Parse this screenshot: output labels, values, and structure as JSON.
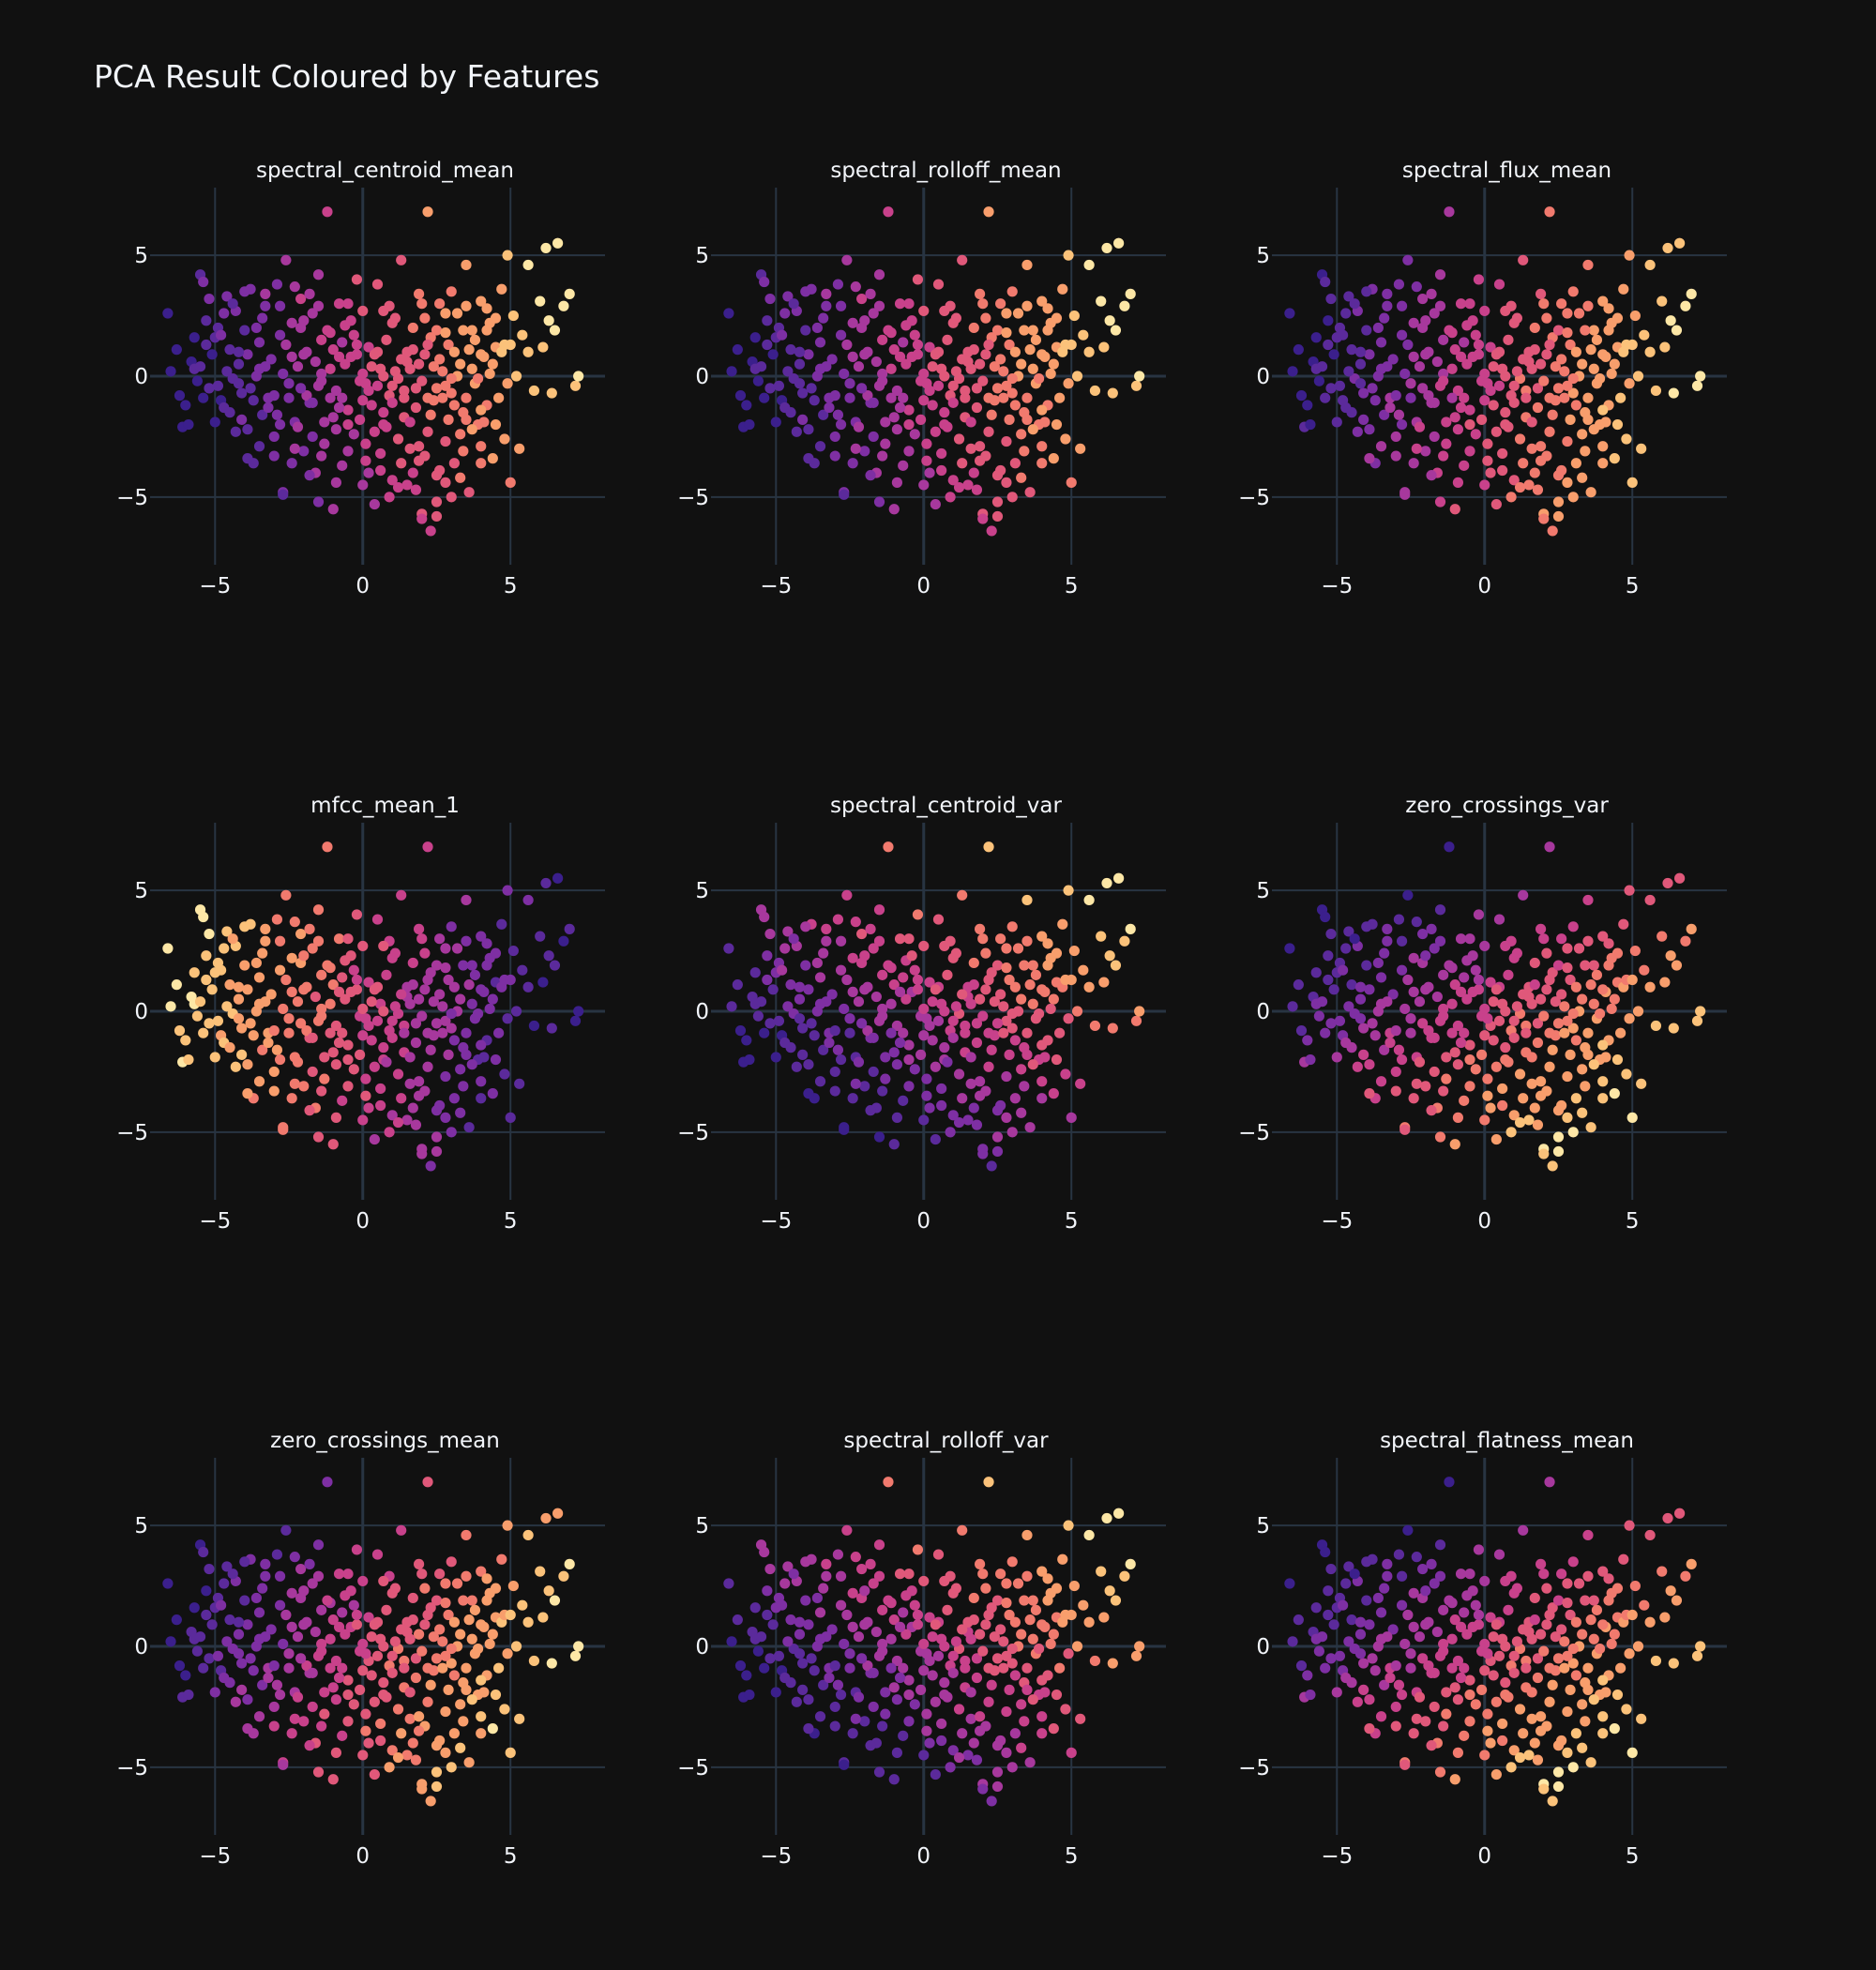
{
  "title": "PCA Result Coloured by Features",
  "colors": {
    "background": "#111111",
    "grid": "#283442",
    "zeroline": "#283442",
    "text": "#f2f5fa",
    "colorscale": [
      "#0d0887",
      "#46039f",
      "#7201a8",
      "#9c179e",
      "#bd3786",
      "#d8576b",
      "#ed7953",
      "#fb9f3a",
      "#fdca26",
      "#f0f921"
    ],
    "plasma_like": [
      "#3b1f8c",
      "#5b2a9b",
      "#7e2fa3",
      "#a7389d",
      "#c8418b",
      "#e0587a",
      "#f17a6e",
      "#f89e6c",
      "#fbc27a",
      "#fde7a6"
    ]
  },
  "chart_data": {
    "type": "scatter",
    "layout": "3x3 grid",
    "xticks": [
      -5,
      0,
      5
    ],
    "yticks": [
      -5,
      0,
      5
    ],
    "xlim": [
      -7.2,
      8.2
    ],
    "ylim": [
      -7.8,
      7.8
    ],
    "grid": true,
    "legend": "none",
    "subplots": [
      {
        "title": "spectral_centroid_mean",
        "color_by": "x_plus_y",
        "trend": [
          0.45,
          0.1
        ]
      },
      {
        "title": "spectral_rolloff_mean",
        "color_by": "x_plus_y",
        "trend": [
          0.45,
          0.1
        ]
      },
      {
        "title": "spectral_flux_mean",
        "color_by": "x_plus_y",
        "trend": [
          0.3,
          -0.05
        ]
      },
      {
        "title": "mfcc_mean_1",
        "color_by": "neg_x",
        "trend": [
          -0.45,
          0.05
        ]
      },
      {
        "title": "spectral_centroid_var",
        "color_by": "x_plus_y",
        "trend": [
          0.25,
          0.25
        ]
      },
      {
        "title": "zero_crossings_var",
        "color_by": "x_minus_y",
        "trend": [
          0.25,
          -0.25
        ]
      },
      {
        "title": "zero_crossings_mean",
        "color_by": "x_plus_y",
        "trend": [
          0.3,
          -0.1
        ]
      },
      {
        "title": "spectral_rolloff_var",
        "color_by": "x_plus_y",
        "trend": [
          0.3,
          0.25
        ]
      },
      {
        "title": "spectral_flatness_mean",
        "color_by": "x_minus_y",
        "trend": [
          0.2,
          -0.2
        ]
      }
    ],
    "points": [
      [
        -6.6,
        2.6
      ],
      [
        -6.5,
        0.2
      ],
      [
        -6.1,
        -2.1
      ],
      [
        -5.9,
        -2.0
      ],
      [
        -5.8,
        0.6
      ],
      [
        -5.7,
        0.3
      ],
      [
        -5.6,
        -0.2
      ],
      [
        -5.5,
        4.2
      ],
      [
        -5.4,
        3.9
      ],
      [
        -5.3,
        2.3
      ],
      [
        -5.2,
        -0.5
      ],
      [
        -5.1,
        0.9
      ],
      [
        -5.0,
        1.6
      ],
      [
        -4.9,
        2.0
      ],
      [
        -4.8,
        -1.0
      ],
      [
        -4.7,
        -1.3
      ],
      [
        -4.6,
        3.3
      ],
      [
        -4.5,
        1.1
      ],
      [
        -4.4,
        -0.1
      ],
      [
        -4.3,
        2.7
      ],
      [
        -4.2,
        0.5
      ],
      [
        -4.1,
        -0.7
      ],
      [
        -4.0,
        1.9
      ],
      [
        -3.9,
        -2.2
      ],
      [
        -3.8,
        3.6
      ],
      [
        -3.7,
        -3.6
      ],
      [
        -3.6,
        0.0
      ],
      [
        -3.5,
        1.4
      ],
      [
        -3.4,
        -1.6
      ],
      [
        -3.3,
        2.9
      ],
      [
        -3.2,
        -0.9
      ],
      [
        -3.1,
        0.7
      ],
      [
        -3.0,
        -2.5
      ],
      [
        -2.9,
        3.8
      ],
      [
        -2.8,
        1.7
      ],
      [
        -2.7,
        -4.8
      ],
      [
        -2.6,
        4.8
      ],
      [
        -2.5,
        -0.3
      ],
      [
        -2.4,
        2.2
      ],
      [
        -2.3,
        -1.9
      ],
      [
        -2.2,
        0.4
      ],
      [
        -2.1,
        3.2
      ],
      [
        -2.0,
        -3.1
      ],
      [
        -1.9,
        1.0
      ],
      [
        -1.8,
        -1.1
      ],
      [
        -1.7,
        2.6
      ],
      [
        -1.6,
        -4.0
      ],
      [
        -1.5,
        4.2
      ],
      [
        -1.4,
        0.1
      ],
      [
        -1.3,
        -2.8
      ],
      [
        -1.2,
        6.8
      ],
      [
        -1.1,
        1.8
      ],
      [
        -1.0,
        -5.5
      ],
      [
        -0.9,
        -0.6
      ],
      [
        -0.8,
        3.0
      ],
      [
        -0.7,
        -3.7
      ],
      [
        -0.6,
        2.1
      ],
      [
        -0.5,
        -1.4
      ],
      [
        -0.4,
        0.8
      ],
      [
        -0.3,
        -2.4
      ],
      [
        -0.2,
        4.0
      ],
      [
        -0.1,
        -0.2
      ],
      [
        0.0,
        2.7
      ],
      [
        0.1,
        -3.5
      ],
      [
        0.2,
        1.2
      ],
      [
        0.3,
        -1.2
      ],
      [
        0.4,
        -5.3
      ],
      [
        0.5,
        3.8
      ],
      [
        0.6,
        0.3
      ],
      [
        0.7,
        -2.0
      ],
      [
        0.8,
        1.5
      ],
      [
        0.9,
        -0.8
      ],
      [
        1.0,
        -4.3
      ],
      [
        1.1,
        2.4
      ],
      [
        1.2,
        -0.1
      ],
      [
        1.3,
        4.8
      ],
      [
        1.4,
        -1.7
      ],
      [
        1.5,
        0.6
      ],
      [
        1.6,
        -3.0
      ],
      [
        1.7,
        2.0
      ],
      [
        1.8,
        -0.5
      ],
      [
        1.9,
        3.4
      ],
      [
        2.0,
        -5.7
      ],
      [
        2.1,
        0.9
      ],
      [
        2.2,
        -2.3
      ],
      [
        2.2,
        6.8
      ],
      [
        2.3,
        1.6
      ],
      [
        2.4,
        -1.0
      ],
      [
        2.5,
        -4.1
      ],
      [
        2.6,
        3.0
      ],
      [
        2.7,
        0.2
      ],
      [
        2.8,
        -2.7
      ],
      [
        2.9,
        1.3
      ],
      [
        3.0,
        -0.7
      ],
      [
        3.1,
        -3.6
      ],
      [
        3.2,
        2.6
      ],
      [
        3.3,
        0.5
      ],
      [
        3.4,
        -1.5
      ],
      [
        3.5,
        4.6
      ],
      [
        3.6,
        -4.8
      ],
      [
        3.7,
        1.9
      ],
      [
        3.8,
        -0.3
      ],
      [
        3.9,
        -2.0
      ],
      [
        4.0,
        3.1
      ],
      [
        4.1,
        0.8
      ],
      [
        4.2,
        -1.2
      ],
      [
        4.3,
        2.2
      ],
      [
        4.4,
        -3.4
      ],
      [
        4.5,
        1.2
      ],
      [
        4.6,
        -0.9
      ],
      [
        4.7,
        3.6
      ],
      [
        4.8,
        -2.6
      ],
      [
        4.9,
        5.0
      ],
      [
        5.0,
        -4.4
      ],
      [
        5.1,
        2.5
      ],
      [
        5.2,
        0.0
      ],
      [
        5.3,
        -3.0
      ],
      [
        5.4,
        1.7
      ],
      [
        5.6,
        4.6
      ],
      [
        5.8,
        -0.6
      ],
      [
        6.0,
        3.1
      ],
      [
        6.1,
        1.2
      ],
      [
        6.2,
        5.3
      ],
      [
        6.4,
        -0.7
      ],
      [
        6.6,
        5.5
      ],
      [
        6.8,
        2.9
      ],
      [
        7.0,
        3.4
      ],
      [
        7.2,
        -0.4
      ],
      [
        7.3,
        0.0
      ],
      [
        6.5,
        1.9
      ],
      [
        -5.7,
        1.6
      ],
      [
        -4.9,
        -0.4
      ],
      [
        -4.4,
        3.0
      ],
      [
        -3.9,
        0.9
      ],
      [
        -3.4,
        2.4
      ],
      [
        -3.0,
        -0.8
      ],
      [
        -2.6,
        1.3
      ],
      [
        -2.2,
        -2.1
      ],
      [
        -1.8,
        3.4
      ],
      [
        -1.5,
        -0.4
      ],
      [
        -1.2,
        1.9
      ],
      [
        -0.9,
        -2.2
      ],
      [
        -0.6,
        0.5
      ],
      [
        -0.3,
        1.7
      ],
      [
        0.0,
        -1.0
      ],
      [
        0.3,
        0.4
      ],
      [
        0.6,
        -3.9
      ],
      [
        0.9,
        2.9
      ],
      [
        1.2,
        -2.6
      ],
      [
        1.5,
        1.0
      ],
      [
        1.8,
        -1.3
      ],
      [
        2.1,
        2.4
      ],
      [
        2.4,
        0.4
      ],
      [
        2.7,
        -0.9
      ],
      [
        3.0,
        3.5
      ],
      [
        3.3,
        -2.4
      ],
      [
        3.6,
        1.1
      ],
      [
        3.9,
        -0.1
      ],
      [
        4.2,
        2.8
      ],
      [
        4.5,
        -2.0
      ],
      [
        -5.4,
        -0.9
      ],
      [
        -4.6,
        0.2
      ],
      [
        -4.1,
        -1.8
      ],
      [
        -3.6,
        2.0
      ],
      [
        -3.2,
        -1.3
      ],
      [
        -2.7,
        0.1
      ],
      [
        -2.3,
        3.7
      ],
      [
        -1.9,
        -0.8
      ],
      [
        -1.6,
        0.6
      ],
      [
        -1.3,
        -1.9
      ],
      [
        -1.0,
        1.1
      ],
      [
        -0.7,
        -0.9
      ],
      [
        -0.4,
        2.3
      ],
      [
        -0.1,
        -1.8
      ],
      [
        0.2,
        -0.6
      ],
      [
        0.5,
        1.0
      ],
      [
        0.8,
        -2.1
      ],
      [
        1.1,
        0.2
      ],
      [
        1.4,
        -0.6
      ],
      [
        1.7,
        1.1
      ],
      [
        2.0,
        -0.2
      ],
      [
        2.3,
        -1.6
      ],
      [
        2.6,
        0.7
      ],
      [
        2.9,
        -1.8
      ],
      [
        3.2,
        0.0
      ],
      [
        3.5,
        -0.9
      ],
      [
        3.8,
        1.5
      ],
      [
        4.1,
        -1.9
      ],
      [
        4.4,
        0.5
      ],
      [
        4.7,
        1.0
      ],
      [
        -6.2,
        -0.8
      ],
      [
        -5.0,
        -1.9
      ],
      [
        -4.3,
        -2.3
      ],
      [
        -3.8,
        -0.5
      ],
      [
        -3.3,
        0.4
      ],
      [
        -2.9,
        -1.6
      ],
      [
        -2.4,
        -3.6
      ],
      [
        -2.0,
        0.9
      ],
      [
        -1.7,
        -1.1
      ],
      [
        -1.4,
        -3.3
      ],
      [
        -1.1,
        0.3
      ],
      [
        -0.8,
        -1.3
      ],
      [
        -0.5,
        -3.1
      ],
      [
        -0.2,
        0.9
      ],
      [
        0.1,
        -0.3
      ],
      [
        0.4,
        -2.3
      ],
      [
        0.7,
        0.0
      ],
      [
        1.0,
        -1.1
      ],
      [
        1.3,
        0.7
      ],
      [
        1.6,
        -1.9
      ],
      [
        1.9,
        0.5
      ],
      [
        2.2,
        -0.9
      ],
      [
        2.5,
        1.9
      ],
      [
        2.8,
        -0.4
      ],
      [
        3.1,
        1.0
      ],
      [
        3.4,
        -3.1
      ],
      [
        3.7,
        0.3
      ],
      [
        4.0,
        -1.4
      ],
      [
        4.3,
        0.1
      ],
      [
        4.8,
        1.3
      ],
      [
        -6.0,
        -1.2
      ],
      [
        -5.3,
        1.3
      ],
      [
        -4.7,
        2.6
      ],
      [
        -4.2,
        -0.3
      ],
      [
        -3.7,
        -1.0
      ],
      [
        -3.3,
        3.4
      ],
      [
        -2.8,
        -2.0
      ],
      [
        -2.4,
        0.8
      ],
      [
        -2.1,
        2.0
      ],
      [
        -1.7,
        -2.5
      ],
      [
        -1.4,
        1.5
      ],
      [
        -1.1,
        -0.9
      ],
      [
        -0.8,
        0.8
      ],
      [
        -0.5,
        -2.0
      ],
      [
        -0.2,
        1.3
      ],
      [
        0.1,
        -2.8
      ],
      [
        0.4,
        0.9
      ],
      [
        0.7,
        -1.5
      ],
      [
        1.0,
        2.2
      ],
      [
        1.3,
        -3.6
      ],
      [
        1.6,
        0.3
      ],
      [
        1.9,
        -2.9
      ],
      [
        2.2,
        1.3
      ],
      [
        2.5,
        -0.5
      ],
      [
        2.8,
        2.6
      ],
      [
        3.1,
        -1.2
      ],
      [
        3.4,
        1.9
      ],
      [
        3.7,
        -2.2
      ],
      [
        4.0,
        0.9
      ],
      [
        4.5,
        2.4
      ],
      [
        -5.2,
        3.2
      ],
      [
        -4.5,
        -1.5
      ],
      [
        -3.5,
        -2.9
      ],
      [
        -2.5,
        -0.9
      ],
      [
        -1.5,
        2.9
      ],
      [
        -0.5,
        3.0
      ],
      [
        0.5,
        -0.4
      ],
      [
        1.5,
        -4.5
      ],
      [
        2.5,
        -5.2
      ],
      [
        3.5,
        2.9
      ],
      [
        -4.0,
        3.5
      ],
      [
        -3.0,
        -3.3
      ],
      [
        -2.0,
        2.3
      ],
      [
        -1.0,
        -1.7
      ],
      [
        0.0,
        -4.5
      ],
      [
        1.0,
        -0.4
      ],
      [
        2.0,
        3.0
      ],
      [
        3.0,
        -0.1
      ],
      [
        4.0,
        -2.9
      ],
      [
        5.0,
        1.3
      ],
      [
        -6.3,
        1.1
      ],
      [
        -5.5,
        0.4
      ],
      [
        -4.8,
        1.7
      ],
      [
        -4.2,
        1.0
      ],
      [
        -3.5,
        0.3
      ],
      [
        -2.8,
        2.9
      ],
      [
        -2.1,
        -0.5
      ],
      [
        -1.4,
        -0.2
      ],
      [
        -0.7,
        1.4
      ],
      [
        0.0,
        0.1
      ],
      [
        0.7,
        2.7
      ],
      [
        1.4,
        -0.9
      ],
      [
        2.1,
        -3.3
      ],
      [
        2.8,
        1.8
      ],
      [
        3.5,
        -1.8
      ],
      [
        4.2,
        1.9
      ],
      [
        4.9,
        -0.3
      ],
      [
        5.6,
        1.0
      ],
      [
        6.3,
        2.3
      ],
      [
        2.3,
        -6.4
      ],
      [
        2.0,
        -5.9
      ],
      [
        2.5,
        -5.8
      ],
      [
        1.8,
        -4.7
      ],
      [
        2.8,
        -4.4
      ],
      [
        0.9,
        -5.0
      ],
      [
        1.7,
        -4.0
      ],
      [
        3.0,
        -5.0
      ],
      [
        2.6,
        -3.9
      ],
      [
        0.2,
        -4.0
      ],
      [
        1.2,
        -4.6
      ],
      [
        -2.7,
        -4.9
      ],
      [
        -1.5,
        -5.2
      ],
      [
        -3.9,
        -3.4
      ],
      [
        -0.9,
        -4.4
      ],
      [
        0.6,
        -3.2
      ],
      [
        -2.3,
        -3.0
      ],
      [
        -1.8,
        -4.1
      ],
      [
        3.3,
        -4.2
      ],
      [
        4.0,
        -3.6
      ],
      [
        1.9,
        -3.5
      ]
    ]
  }
}
